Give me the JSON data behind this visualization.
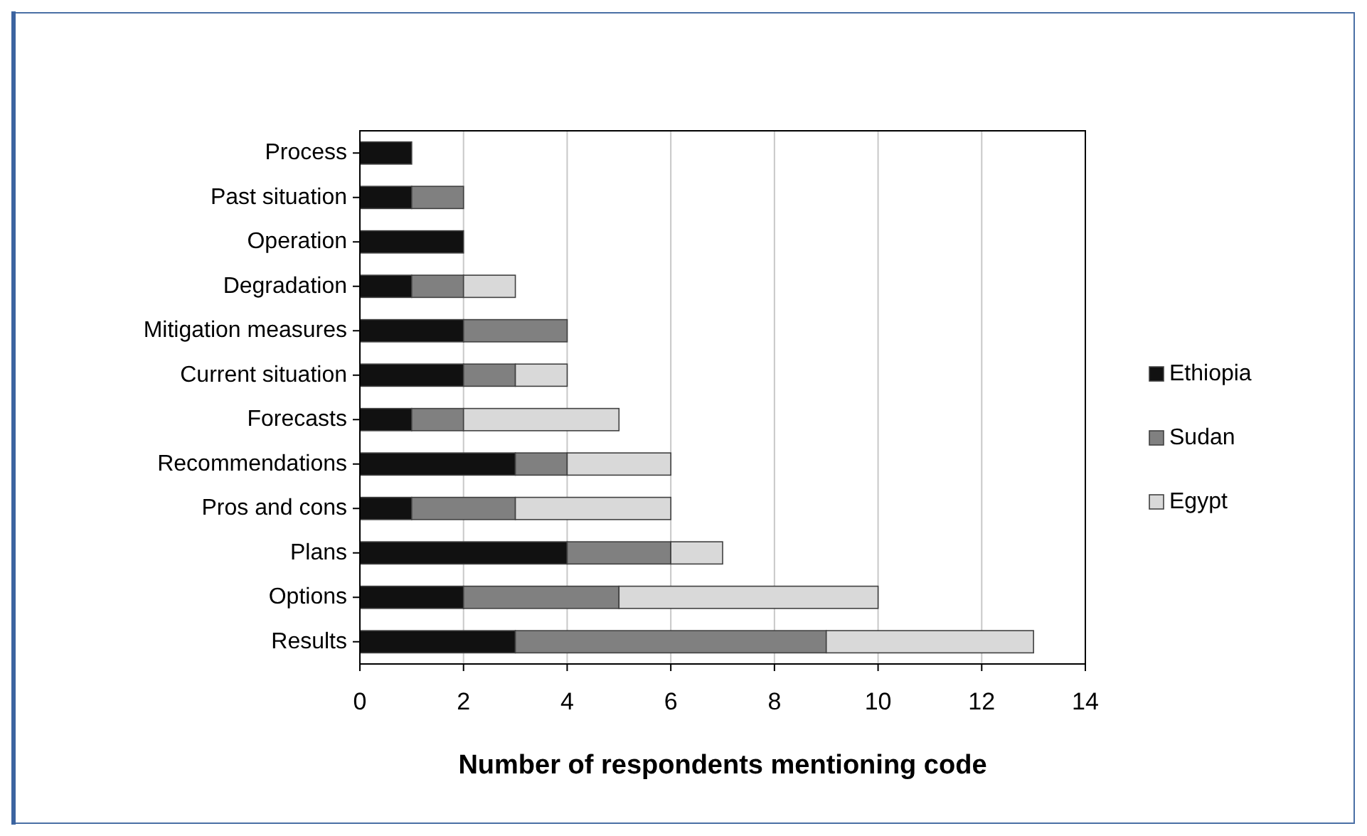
{
  "chart_data": {
    "type": "bar",
    "orientation": "horizontal",
    "stacked": true,
    "xlabel": "Number of respondents mentioning code",
    "categories": [
      "Process",
      "Past situation",
      "Operation",
      "Degradation",
      "Mitigation measures",
      "Current situation",
      "Forecasts",
      "Recommendations",
      "Pros and cons",
      "Plans",
      "Options",
      "Results"
    ],
    "series": [
      {
        "name": "Ethiopia",
        "color": "#111111",
        "values": [
          1,
          1,
          2,
          1,
          2,
          2,
          1,
          3,
          1,
          4,
          2,
          3
        ]
      },
      {
        "name": "Sudan",
        "color": "#808080",
        "values": [
          0,
          1,
          0,
          1,
          2,
          1,
          1,
          1,
          2,
          2,
          3,
          6
        ]
      },
      {
        "name": "Egypt",
        "color": "#d9d9d9",
        "values": [
          0,
          0,
          0,
          1,
          0,
          1,
          3,
          2,
          3,
          1,
          5,
          4
        ]
      }
    ],
    "xlim": [
      0,
      14
    ],
    "xticks": [
      0,
      2,
      4,
      6,
      8,
      10,
      12,
      14
    ],
    "grid": "x",
    "legend": "right"
  }
}
